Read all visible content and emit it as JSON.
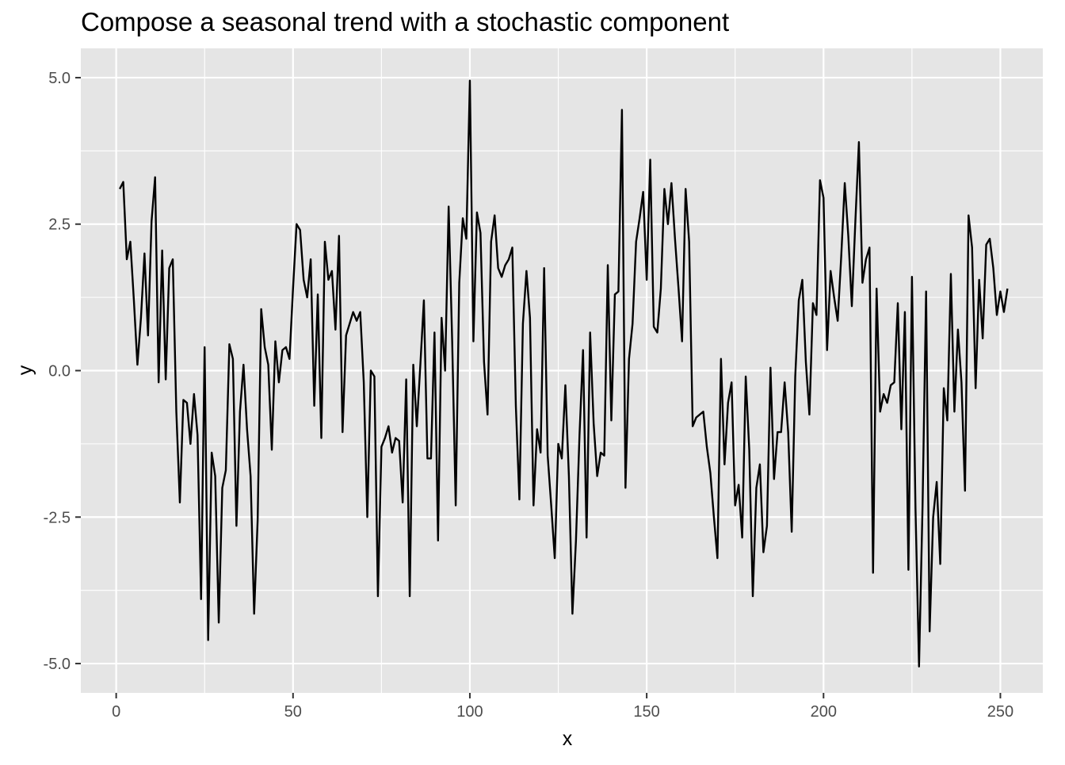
{
  "chart_data": {
    "type": "line",
    "title": "Compose a seasonal trend with a stochastic component",
    "xlabel": "x",
    "ylabel": "y",
    "xlim": [
      -10,
      262
    ],
    "ylim": [
      -5.5,
      5.5
    ],
    "x_ticks": [
      0,
      50,
      100,
      150,
      200,
      250
    ],
    "x_tick_labels": [
      "0",
      "50",
      "100",
      "150",
      "200",
      "250"
    ],
    "y_ticks": [
      -5,
      -2.5,
      0,
      2.5,
      5
    ],
    "y_tick_labels": [
      "-5.0",
      "-2.5",
      "0.0",
      "2.5",
      "5.0"
    ],
    "grid": true,
    "colors": {
      "panel": "#e5e5e5",
      "grid": "#ffffff",
      "line": "#000000",
      "axis_text": "#4d4d4d",
      "title": "#000000"
    },
    "series": [
      {
        "x": [
          1,
          2,
          3,
          4,
          5,
          6,
          7,
          8,
          9,
          10,
          11,
          12,
          13,
          14,
          15,
          16,
          17,
          18,
          19,
          20,
          21,
          22,
          23,
          24,
          25,
          26,
          27,
          28,
          29,
          30,
          31,
          32,
          33,
          34,
          35,
          36,
          37,
          38,
          39,
          40,
          41,
          42,
          43,
          44,
          45,
          46,
          47,
          48,
          49,
          50,
          51,
          52,
          53,
          54,
          55,
          56,
          57,
          58,
          59,
          60,
          61,
          62,
          63,
          64,
          65,
          66,
          67,
          68,
          69,
          70,
          71,
          72,
          73,
          74,
          75,
          76,
          77,
          78,
          79,
          80,
          81,
          82,
          83,
          84,
          85,
          86,
          87,
          88,
          89,
          90,
          91,
          92,
          93,
          94,
          95,
          96,
          97,
          98,
          99,
          100,
          101,
          102,
          103,
          104,
          105,
          106,
          107,
          108,
          109,
          110,
          111,
          112,
          113,
          114,
          115,
          116,
          117,
          118,
          119,
          120,
          121,
          122,
          123,
          124,
          125,
          126,
          127,
          128,
          129,
          130,
          131,
          132,
          133,
          134,
          135,
          136,
          137,
          138,
          139,
          140,
          141,
          142,
          143,
          144,
          145,
          146,
          147,
          148,
          149,
          150,
          151,
          152,
          153,
          154,
          155,
          156,
          157,
          158,
          159,
          160,
          161,
          162,
          163,
          164,
          165,
          166,
          167,
          168,
          169,
          170,
          171,
          172,
          173,
          174,
          175,
          176,
          177,
          178,
          179,
          180,
          181,
          182,
          183,
          184,
          185,
          186,
          187,
          188,
          189,
          190,
          191,
          192,
          193,
          194,
          195,
          196,
          197,
          198,
          199,
          200,
          201,
          202,
          203,
          204,
          205,
          206,
          207,
          208,
          209,
          210,
          211,
          212,
          213,
          214,
          215,
          216,
          217,
          218,
          219,
          220,
          221,
          222,
          223,
          224,
          225,
          226,
          227,
          228,
          229,
          230,
          231,
          232,
          233,
          234,
          235,
          236,
          237,
          238,
          239,
          240,
          241,
          242,
          243,
          244,
          245,
          246,
          247,
          248,
          249,
          250,
          251,
          252
        ],
        "y": [
          3.1,
          3.22,
          1.9,
          2.2,
          1.2,
          0.1,
          0.9,
          2.0,
          0.6,
          2.55,
          3.3,
          -0.2,
          2.05,
          -0.15,
          1.75,
          1.9,
          -0.7,
          -2.25,
          -0.5,
          -0.55,
          -1.25,
          -0.4,
          -1.1,
          -3.9,
          0.4,
          -4.6,
          -1.4,
          -1.8,
          -4.3,
          -2.0,
          -1.7,
          0.45,
          0.2,
          -2.65,
          -0.7,
          0.1,
          -1.0,
          -1.8,
          -4.15,
          -2.55,
          1.05,
          0.4,
          0.1,
          -1.35,
          0.5,
          -0.2,
          0.35,
          0.4,
          0.2,
          1.4,
          2.5,
          2.4,
          1.55,
          1.25,
          1.9,
          -0.6,
          1.3,
          -1.15,
          2.2,
          1.55,
          1.7,
          0.7,
          2.3,
          -1.05,
          0.6,
          0.8,
          1.0,
          0.85,
          1.0,
          -0.2,
          -2.5,
          0.0,
          -0.1,
          -3.85,
          -1.3,
          -1.15,
          -0.95,
          -1.4,
          -1.15,
          -1.2,
          -2.25,
          -0.15,
          -3.85,
          0.1,
          -0.95,
          0.1,
          1.2,
          -1.5,
          -1.5,
          0.65,
          -2.9,
          0.9,
          0.0,
          2.8,
          0.5,
          -2.3,
          1.5,
          2.6,
          2.25,
          4.95,
          0.5,
          2.7,
          2.35,
          0.15,
          -0.75,
          2.2,
          2.65,
          1.75,
          1.6,
          1.8,
          1.9,
          2.1,
          -0.6,
          -2.2,
          0.8,
          1.7,
          0.9,
          -2.3,
          -1.0,
          -1.4,
          1.75,
          -1.45,
          -2.3,
          -3.2,
          -1.25,
          -1.5,
          -0.25,
          -1.8,
          -4.15,
          -2.9,
          -1.1,
          0.35,
          -2.85,
          0.65,
          -0.9,
          -1.8,
          -1.4,
          -1.45,
          1.8,
          -0.85,
          1.3,
          1.35,
          4.45,
          -2.0,
          0.2,
          0.8,
          2.2,
          2.6,
          3.05,
          1.55,
          3.6,
          0.75,
          0.65,
          1.4,
          3.1,
          2.5,
          3.2,
          2.25,
          1.4,
          0.5,
          3.1,
          2.2,
          -0.95,
          -0.8,
          -0.75,
          -0.7,
          -1.3,
          -1.75,
          -2.5,
          -3.2,
          0.2,
          -1.6,
          -0.55,
          -0.2,
          -2.3,
          -1.95,
          -2.85,
          -0.1,
          -1.35,
          -3.85,
          -2.0,
          -1.6,
          -3.1,
          -2.65,
          0.05,
          -1.85,
          -1.05,
          -1.05,
          -0.2,
          -1.05,
          -2.75,
          -0.1,
          1.2,
          1.55,
          0.15,
          -0.75,
          1.15,
          0.95,
          3.25,
          2.95,
          0.35,
          1.7,
          1.25,
          0.85,
          1.95,
          3.2,
          2.3,
          1.1,
          2.55,
          3.9,
          1.5,
          1.9,
          2.1,
          -3.45,
          1.4,
          -0.7,
          -0.4,
          -0.55,
          -0.25,
          -0.2,
          1.15,
          -1.0,
          1.0,
          -3.4,
          1.6,
          -2.35,
          -5.05,
          -2.3,
          1.35,
          -4.45,
          -2.5,
          -1.9,
          -3.3,
          -0.3,
          -0.85,
          1.65,
          -0.7,
          0.7,
          -0.2,
          -2.05,
          2.65,
          2.1,
          -0.3,
          1.55,
          0.55,
          2.15,
          2.25,
          1.75,
          0.95,
          1.35,
          1.0,
          1.4
        ]
      }
    ]
  }
}
